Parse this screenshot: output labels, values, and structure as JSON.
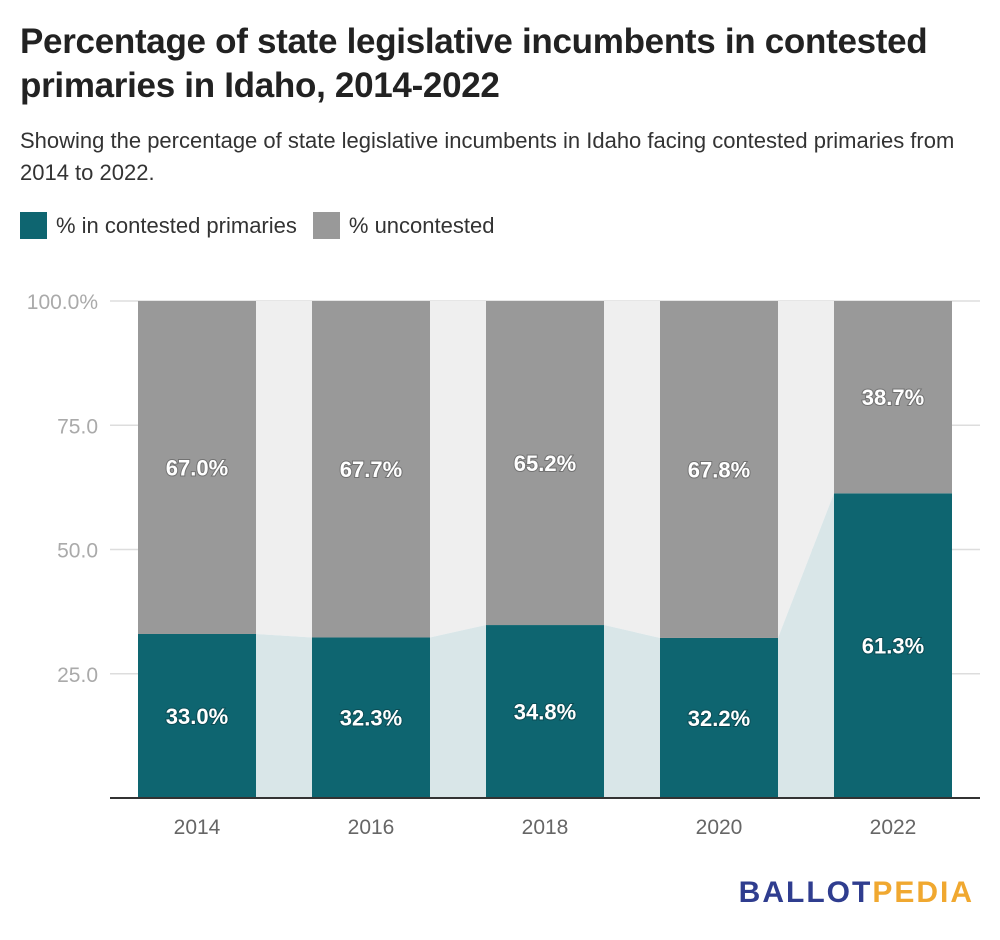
{
  "title": "Percentage of state legislative incumbents in contested primaries in Idaho, 2014-2022",
  "subtitle": "Showing the percentage of state legislative incumbents in Idaho facing contested primaries from 2014 to 2022.",
  "brand": {
    "part1": "BALLOT",
    "part2": "PEDIA",
    "color1": "#2f3d8f",
    "color2": "#f0a830"
  },
  "chart_data": {
    "type": "bar",
    "stacked": true,
    "categories": [
      "2014",
      "2016",
      "2018",
      "2020",
      "2022"
    ],
    "series": [
      {
        "name": "% in contested primaries",
        "color": "#0e6570",
        "values": [
          33.0,
          32.3,
          34.8,
          32.2,
          61.3
        ],
        "labels": [
          "33.0%",
          "32.3%",
          "34.8%",
          "32.2%",
          "61.3%"
        ]
      },
      {
        "name": "% uncontested",
        "color": "#999999",
        "values": [
          67.0,
          67.7,
          65.2,
          67.8,
          38.7
        ],
        "labels": [
          "67.0%",
          "67.7%",
          "65.2%",
          "67.8%",
          "38.7%"
        ]
      }
    ],
    "yticks": [
      0,
      25,
      50,
      75,
      100
    ],
    "ytick_labels": [
      "",
      "25.0",
      "50.0",
      "75.0",
      "100.0%"
    ],
    "ylim": [
      0,
      100
    ],
    "grid": true,
    "legend_position": "top-left",
    "connector_colors": {
      "upper": "#efefef",
      "lower": "#d9e6e8"
    }
  }
}
